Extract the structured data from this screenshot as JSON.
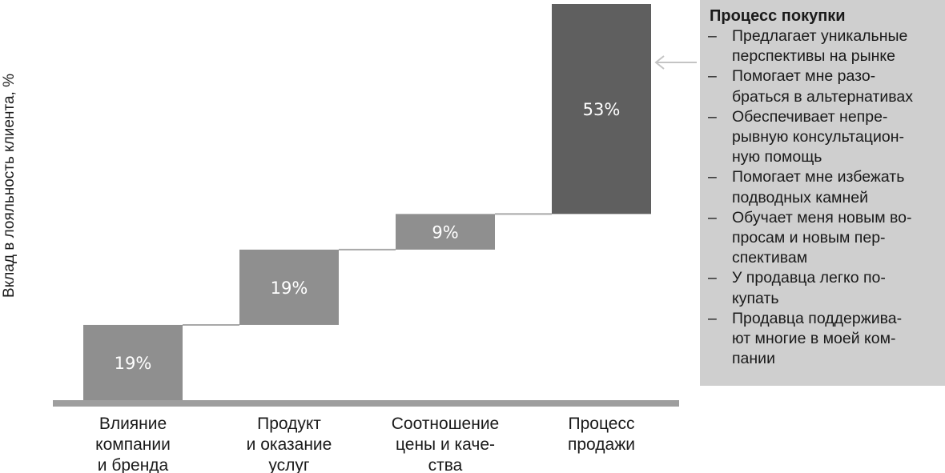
{
  "chart_data": {
    "type": "bar",
    "subtype": "waterfall",
    "categories": [
      "Влияние\nкомпании\nи бренда",
      "Продукт\nи оказание\nуслуг",
      "Соотношение\nцены и каче-\nства",
      "Процесс\nпродажи"
    ],
    "values": [
      19,
      19,
      9,
      53
    ],
    "value_labels": [
      "19%",
      "19%",
      "9%",
      "53%"
    ],
    "xlabel": "",
    "ylabel": "Вклад в лояльность клиента, %",
    "ylim": [
      0,
      100
    ],
    "grid": false,
    "colors": {
      "bar": "#8f8f8f",
      "highlight_bar": "#5f5f5f",
      "baseline": "#9e9e9e",
      "connector": "#a8a8a8",
      "arrow": "#c4c4c4"
    }
  },
  "callout": {
    "title": "Процесс покупки",
    "items": [
      "Предлагает уникальные\nперспективы на рынке",
      "Помогает мне разо-\nбраться в альтернативах",
      "Обеспечивает непре-\nрывную консультацион-\nную помощь",
      "Помогает мне избежать\nподводных камней",
      "Обучает меня новым во-\nпросам и новым пер-\nспективам",
      "У продавца легко по-\nкупать",
      "Продавца поддержива-\nют многие в моей ком-\nпании"
    ],
    "bullet": "–"
  }
}
